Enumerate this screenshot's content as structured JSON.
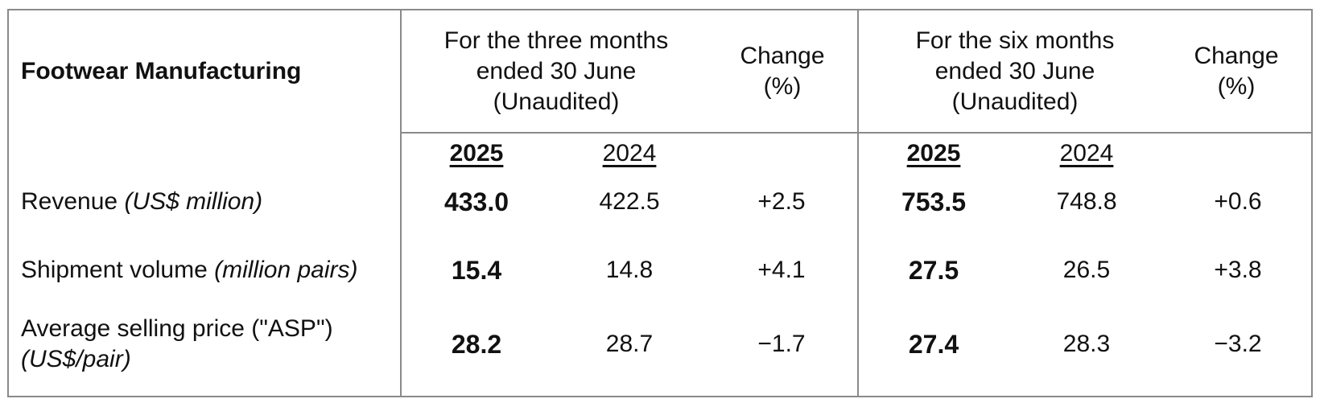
{
  "table": {
    "title": "Footwear Manufacturing",
    "headers": {
      "three_months": "For the three months ended 30 June (Unaudited)",
      "change1": "Change (%)",
      "six_months": "For the six months ended 30 June (Unaudited)",
      "change2": "Change (%)"
    },
    "years": {
      "q_current": "2025",
      "q_prior": "2024",
      "h_current": "2025",
      "h_prior": "2024"
    },
    "rows": [
      {
        "label": "Revenue",
        "unit": "(US$ million)",
        "q_current": "433.0",
        "q_prior": "422.5",
        "q_change": "+2.5",
        "h_current": "753.5",
        "h_prior": "748.8",
        "h_change": "+0.6"
      },
      {
        "label": "Shipment volume",
        "unit": "(million pairs)",
        "q_current": "15.4",
        "q_prior": "14.8",
        "q_change": "+4.1",
        "h_current": "27.5",
        "h_prior": "26.5",
        "h_change": "+3.8"
      },
      {
        "label": "Average selling price (\"ASP\")",
        "unit": "(US$/pair)",
        "q_current": "28.2",
        "q_prior": "28.7",
        "q_change": "−1.7",
        "h_current": "27.4",
        "h_prior": "28.3",
        "h_change": "−3.2"
      }
    ]
  }
}
